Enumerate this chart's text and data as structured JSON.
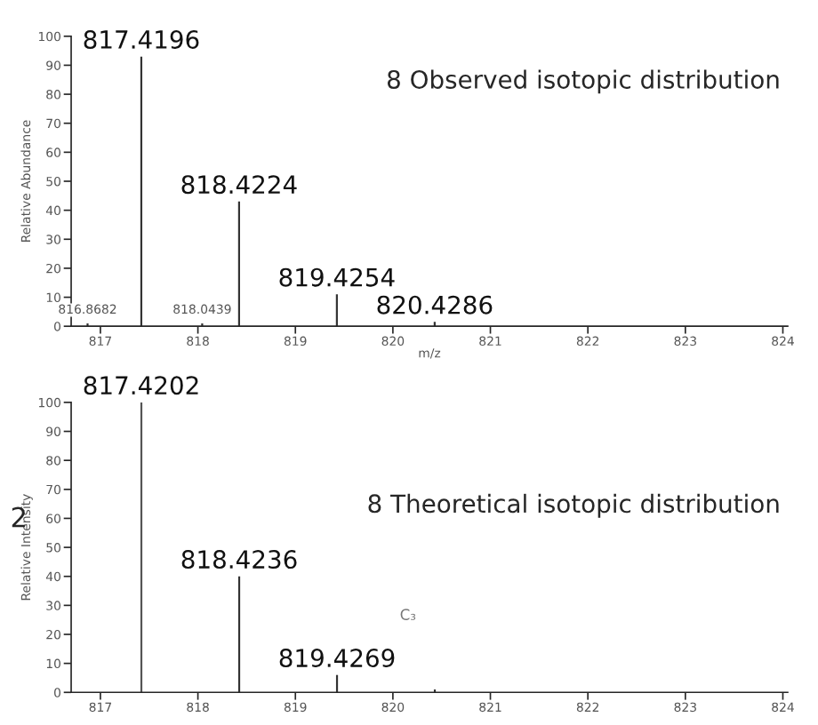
{
  "chart_data": [
    {
      "type": "bar",
      "x": [
        816.8682,
        817.4196,
        818.0439,
        818.4224,
        819.4254,
        820.4286
      ],
      "values": [
        1,
        93,
        1,
        43,
        11,
        1.5
      ],
      "colors": [
        "#333333",
        "#333333",
        "#333333",
        "#333333",
        "#333333",
        "#333333"
      ],
      "xlabel": "m/z",
      "ylabel": "Relative Abundance",
      "xlim": [
        816.7,
        824.05
      ],
      "xticks": [
        817,
        818,
        819,
        820,
        821,
        822,
        823,
        824
      ],
      "ylim": [
        0,
        100
      ],
      "yticks": [
        0,
        10,
        20,
        30,
        40,
        50,
        60,
        70,
        80,
        90,
        100
      ],
      "annotations": [
        "8 Observed isotopic distribution",
        {
          "text": "816.8682",
          "x": 816.8682,
          "y": 1
        },
        {
          "text": "817.4196",
          "x": 817.4196,
          "y": 93
        },
        {
          "text": "818.0439",
          "x": 818.0439,
          "y": 1
        },
        {
          "text": "818.4224",
          "x": 818.4224,
          "y": 43
        },
        {
          "text": "819.4254",
          "x": 819.4254,
          "y": 11
        },
        {
          "text": "820.4286",
          "x": 820.4286,
          "y": 1.5
        }
      ],
      "grid": false,
      "legend": false
    },
    {
      "type": "bar",
      "x": [
        817.4202,
        818.4236,
        819.4269,
        820.43
      ],
      "values": [
        100,
        40,
        6,
        1
      ],
      "colors": [
        "#555555",
        "#333333",
        "#333333",
        "#333333"
      ],
      "ylabel": "Relative Intensity",
      "xlim": [
        816.7,
        824.05
      ],
      "xticks": [
        817,
        818,
        819,
        820,
        821,
        822,
        823,
        824
      ],
      "ylim": [
        0,
        100
      ],
      "yticks": [
        0,
        10,
        20,
        30,
        40,
        50,
        60,
        70,
        80,
        90,
        100
      ],
      "annotations": [
        "8 Theoretical isotopic distribution",
        {
          "text": "817.4202",
          "x": 817.4202,
          "y": 100
        },
        {
          "text": "818.4236",
          "x": 818.4236,
          "y": 40
        },
        {
          "text": "819.4269",
          "x": 819.4269,
          "y": 6
        },
        "C₃",
        "2"
      ],
      "grid": false,
      "legend": false
    }
  ]
}
